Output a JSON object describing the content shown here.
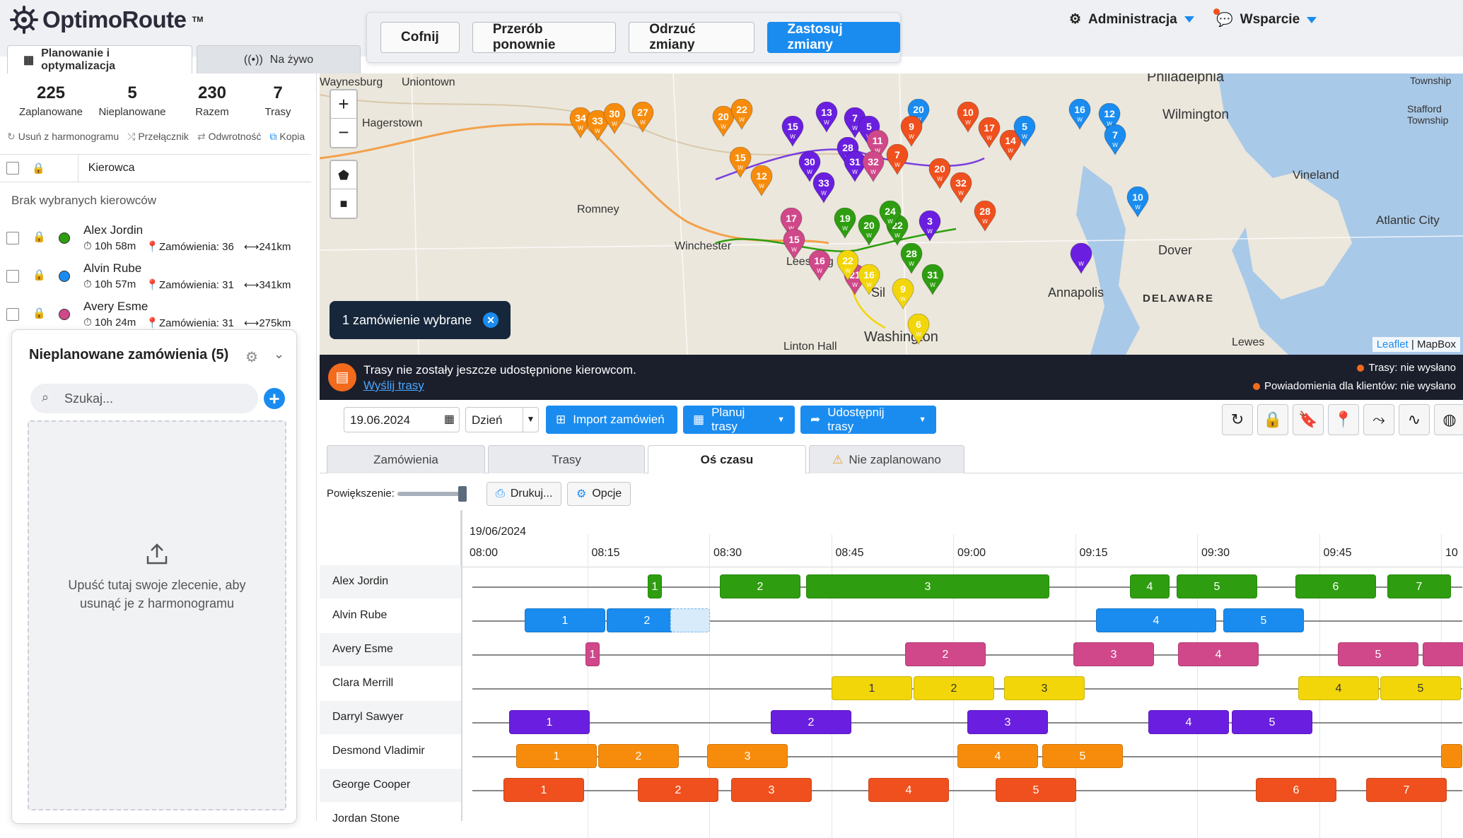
{
  "app": {
    "name": "OptimoRoute",
    "tm": "TM"
  },
  "undo": {
    "back": "Cofnij",
    "redo": "Przerób ponownie",
    "discard": "Odrzuć zmiany",
    "apply": "Zastosuj zmiany"
  },
  "nav": {
    "admin": "Administracja",
    "support": "Wsparcie"
  },
  "tabs": {
    "planning": "Planowanie i optymalizacja",
    "live": "Na żywo"
  },
  "stats": [
    {
      "value": "225",
      "label": "Zaplanowane"
    },
    {
      "value": "5",
      "label": "Nieplanowane"
    },
    {
      "value": "230",
      "label": "Razem"
    },
    {
      "value": "7",
      "label": "Trasy"
    }
  ],
  "actions": {
    "remove": "Usuń z harmonogramu",
    "toggle": "Przełącznik",
    "reverse": "Odwrotność",
    "copy": "Kopia"
  },
  "drivers_header": "Kierowca",
  "no_selection": "Brak wybranych kierowców",
  "drivers": [
    {
      "name": "Alex Jordin",
      "time": "10h 58m",
      "orders": "Zamówienia: 36",
      "dist": "241km",
      "color": "#2e9e10"
    },
    {
      "name": "Alvin Rube",
      "time": "10h 57m",
      "orders": "Zamówienia: 31",
      "dist": "341km",
      "color": "#1a8cf0"
    },
    {
      "name": "Avery Esme",
      "time": "10h 24m",
      "orders": "Zamówienia: 31",
      "dist": "275km",
      "color": "#d0488a"
    }
  ],
  "unplanned": {
    "title": "Nieplanowane zamówienia (5)",
    "search_placeholder": "Szukaj...",
    "drop_text": "Upuść tutaj swoje zlecenie, aby usunąć je z harmonogramu"
  },
  "map": {
    "selected": "1 zamówienie wybrane",
    "attribution_leaflet": "Leaflet",
    "attribution_mapbox": "| MapBox",
    "cities": [
      "Waynesburg",
      "Uniontown",
      "Hagerstown",
      "Romney",
      "Winchester",
      "Leesburg",
      "Washington",
      "Linton Hall",
      "Philadelphia",
      "Wilmington",
      "Vineland",
      "Atlantic City",
      "Dover",
      "DELAWARE",
      "Lewes",
      "Township",
      "Stafford Township",
      "Sil",
      "Annapolis"
    ]
  },
  "notice": {
    "text": "Trasy nie zostały jeszcze udostępnione kierowcom.",
    "link": "Wyślij trasy",
    "status1": "Trasy: nie wysłano",
    "status2": "Powiadomienia dla klientów: nie wysłano"
  },
  "toolbar": {
    "date": "19.06.2024",
    "period": "Dzień",
    "import": "Import zamówień",
    "plan": "Planuj trasy",
    "share": "Udostępnij trasy"
  },
  "view_tabs": {
    "orders": "Zamówienia",
    "routes": "Trasy",
    "timeline": "Oś czasu",
    "unplanned": "Nie zaplanowano"
  },
  "timeline": {
    "zoom_label": "Powiększenie:",
    "print": "Drukuj...",
    "options": "Opcje",
    "date": "19/06/2024",
    "ticks": [
      "08:00",
      "08:15",
      "08:30",
      "08:45",
      "09:00",
      "09:15",
      "09:30",
      "09:45",
      "10"
    ],
    "rows": [
      "Alex Jordin",
      "Alvin Rube",
      "Avery Esme",
      "Clara Merrill",
      "Darryl Sawyer",
      "Desmond Vladimir",
      "George Cooper",
      "Jordan Stone"
    ]
  },
  "colors": {
    "accent": "#1a8cf0",
    "green": "#2e9e10",
    "blue": "#1a8cf0",
    "pink": "#d0488a",
    "yellow": "#f2d60a",
    "purple": "#6a1fe0",
    "orange": "#f78c0c",
    "red": "#f0501e"
  }
}
